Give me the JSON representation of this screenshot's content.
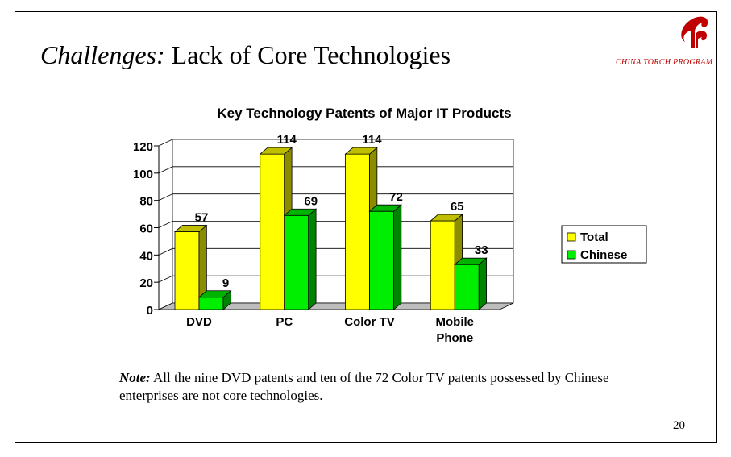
{
  "slide": {
    "title_italic": "Challenges:",
    "title_rest": " Lack of Core Technologies",
    "logo_text": "CHINA TORCH PROGRAM",
    "note_label": "Note:",
    "note_text": " All the nine DVD patents and ten of the 72 Color TV patents possessed by Chinese enterprises are not core technologies.",
    "page_number": "20"
  },
  "colors": {
    "total": "#ffff00",
    "chinese": "#00ee00",
    "logo": "#c00000"
  },
  "chart_data": {
    "type": "bar",
    "title": "Key Technology Patents of Major IT Products",
    "categories": [
      "DVD",
      "PC",
      "Color TV",
      "Mobile Phone"
    ],
    "category_lines": [
      [
        "DVD"
      ],
      [
        "PC"
      ],
      [
        "Color TV"
      ],
      [
        "Mobile",
        "Phone"
      ]
    ],
    "series": [
      {
        "name": "Total",
        "values": [
          57,
          114,
          114,
          65
        ]
      },
      {
        "name": "Chinese",
        "values": [
          9,
          69,
          72,
          33
        ]
      }
    ],
    "ylim": [
      0,
      120
    ],
    "yticks": [
      "0",
      "20",
      "40",
      "60",
      "80",
      "100",
      "120"
    ],
    "legend_position": "right",
    "style": "3d-clustered-column"
  }
}
